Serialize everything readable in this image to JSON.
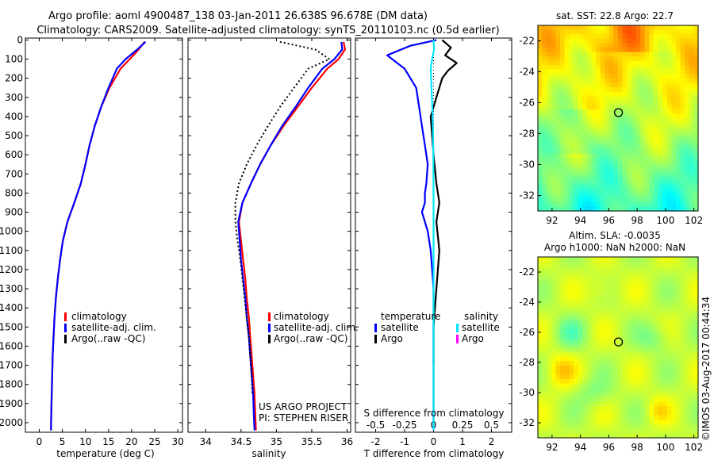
{
  "header": {
    "line1": "Argo profile: aoml 4900487_138 03-Jan-2011 26.638S 96.678E (DM data)",
    "line2": "Climatology: CARS2009. Satellite-adjusted climatology: synTS_20110103.nc (0.5d earlier)"
  },
  "stamp": "©IMOS 03-Aug-2017 00:44:34",
  "colors": {
    "climatology": "#ff0000",
    "satellite": "#0000ff",
    "argo": "#000000",
    "sal_satellite": "#00e5ff",
    "sal_argo": "#ff00ff"
  },
  "chart_data": [
    {
      "id": "temperature",
      "type": "line",
      "xlabel": "temperature (deg C)",
      "xlim": [
        -3,
        31
      ],
      "xticks": [
        0,
        5,
        10,
        15,
        20,
        25,
        30
      ],
      "ylim": [
        2050,
        -10
      ],
      "yticks": [
        0,
        100,
        200,
        300,
        400,
        500,
        600,
        700,
        800,
        900,
        1000,
        1100,
        1200,
        1300,
        1400,
        1500,
        1600,
        1700,
        1800,
        1900,
        2000
      ],
      "legend": [
        "climatology",
        "satellite-adj. clim.",
        "Argo(..raw -QC)"
      ],
      "series": [
        {
          "name": "climatology",
          "style": "solid",
          "x": [
            22.8,
            21.5,
            19.6,
            17.6,
            15.2,
            13.4,
            12.0,
            10.9,
            10.0,
            9.0,
            7.6,
            6.1,
            5.1,
            4.5,
            4.0,
            3.6,
            3.3,
            3.1,
            2.9,
            2.8,
            2.7,
            2.6,
            2.55
          ],
          "y": [
            10,
            50,
            100,
            150,
            250,
            350,
            450,
            550,
            650,
            750,
            850,
            950,
            1050,
            1150,
            1250,
            1350,
            1450,
            1550,
            1650,
            1750,
            1850,
            1950,
            2040
          ]
        },
        {
          "name": "satellite-adj. clim.",
          "style": "solid",
          "x": [
            23.0,
            21.2,
            18.7,
            16.8,
            15.0,
            13.4,
            12.0,
            10.9,
            10.0,
            9.0,
            7.6,
            6.1,
            5.1,
            4.5,
            4.0,
            3.6,
            3.3,
            3.1,
            2.9,
            2.8,
            2.7,
            2.6,
            2.55
          ],
          "y": [
            10,
            50,
            100,
            150,
            250,
            350,
            450,
            550,
            650,
            750,
            850,
            950,
            1050,
            1150,
            1250,
            1350,
            1450,
            1550,
            1650,
            1750,
            1850,
            1950,
            2040
          ]
        }
      ]
    },
    {
      "id": "salinity",
      "type": "line",
      "xlabel": "salinity",
      "xlim": [
        33.75,
        36.05
      ],
      "xticks": [
        34,
        34.5,
        35,
        35.5,
        36
      ],
      "ylim": [
        2050,
        -10
      ],
      "legend": [
        "climatology",
        "satellite-adj. clim.",
        "Argo(..raw -QC)"
      ],
      "annotation": [
        "US ARGO PROJECT",
        "PI: STEPHEN RISER"
      ],
      "series": [
        {
          "name": "climatology",
          "style": "solid",
          "x": [
            35.95,
            35.97,
            35.88,
            35.72,
            35.5,
            35.3,
            35.1,
            34.92,
            34.77,
            34.64,
            34.52,
            34.47,
            34.5,
            34.53,
            34.56,
            34.58,
            34.61,
            34.63,
            34.65,
            34.67,
            34.69,
            34.7,
            34.71
          ],
          "y": [
            10,
            50,
            100,
            150,
            250,
            350,
            450,
            550,
            650,
            750,
            850,
            950,
            1050,
            1150,
            1250,
            1350,
            1450,
            1550,
            1650,
            1750,
            1850,
            1950,
            2040
          ]
        },
        {
          "name": "satellite-adj. clim.",
          "style": "solid",
          "x": [
            35.92,
            35.93,
            35.82,
            35.65,
            35.45,
            35.27,
            35.08,
            34.92,
            34.77,
            34.64,
            34.52,
            34.46,
            34.48,
            34.5,
            34.53,
            34.56,
            34.58,
            34.61,
            34.63,
            34.65,
            34.67,
            34.68,
            34.69
          ],
          "y": [
            10,
            50,
            100,
            150,
            250,
            350,
            450,
            550,
            650,
            750,
            850,
            950,
            1050,
            1150,
            1250,
            1350,
            1450,
            1550,
            1650,
            1750,
            1850,
            1950,
            2040
          ]
        },
        {
          "name": "Argo(..raw -QC)",
          "style": "dotted",
          "x": [
            35.05,
            35.55,
            35.75,
            35.45,
            35.25,
            35.05,
            34.88,
            34.72,
            34.58,
            34.47,
            34.42,
            34.42,
            34.45,
            34.49,
            34.52,
            34.55,
            34.58,
            34.61,
            34.63,
            34.65,
            34.66
          ],
          "y": [
            10,
            50,
            100,
            150,
            250,
            350,
            450,
            550,
            650,
            750,
            850,
            950,
            1050,
            1150,
            1250,
            1350,
            1450,
            1550,
            1650,
            1750,
            1850
          ]
        }
      ]
    },
    {
      "id": "difference",
      "type": "line",
      "xlabel": "T difference from climatology",
      "xlabel_top": "S difference from climatology",
      "xlim": [
        -2.7,
        2.7
      ],
      "xticks": [
        -2,
        -1,
        0,
        1,
        2
      ],
      "xticks_s": [
        "-0.5",
        "-0.25",
        "0",
        "0.25",
        "0.5"
      ],
      "ylim": [
        2050,
        -10
      ],
      "legend_title_left": "temperature",
      "legend_title_right": "salinity",
      "legend": [
        "satellite",
        "Argo",
        "satellite",
        "Argo"
      ],
      "series": [
        {
          "name": "T satellite",
          "style": "solid",
          "x": [
            0.1,
            -0.8,
            -1.6,
            -1.0,
            -0.6,
            -0.5,
            -0.4,
            -0.3,
            -0.2,
            -0.25,
            -0.3,
            -0.3,
            -0.4,
            -0.2,
            -0.1,
            0.0,
            0.0,
            0.0,
            0.0,
            0.0
          ],
          "y": [
            0,
            30,
            80,
            150,
            250,
            350,
            450,
            550,
            650,
            750,
            800,
            850,
            900,
            1000,
            1100,
            1300,
            1500,
            1700,
            1900,
            2040
          ]
        },
        {
          "name": "T Argo",
          "style": "solid",
          "x": [
            0.3,
            0.6,
            0.4,
            0.8,
            0.5,
            0.3,
            0.1,
            -0.1,
            0.0,
            0.1,
            0.2,
            0.1,
            0.2,
            0.1,
            0.0,
            0.0
          ],
          "y": [
            0,
            40,
            80,
            120,
            160,
            200,
            300,
            400,
            600,
            750,
            850,
            950,
            1100,
            1300,
            1500,
            1700
          ]
        },
        {
          "name": "S satellite",
          "style": "solid",
          "x": [
            0.0,
            0.02,
            -0.05,
            -0.1,
            -0.07,
            -0.03,
            -0.01,
            0.0,
            0.0,
            0.0,
            0.0
          ],
          "y": [
            0,
            50,
            100,
            150,
            250,
            400,
            550,
            800,
            1100,
            1500,
            2040
          ]
        }
      ]
    },
    {
      "id": "sst_map",
      "type": "heatmap",
      "title": "sat. SST: 22.8 Argo: 22.7",
      "xlim": [
        91,
        102.3
      ],
      "ylim": [
        -33,
        -21
      ],
      "xticks": [
        92,
        94,
        96,
        98,
        100,
        102
      ],
      "yticks": [
        -22,
        -24,
        -26,
        -28,
        -30,
        -32
      ],
      "marker": [
        96.68,
        -26.64
      ]
    },
    {
      "id": "sla_map",
      "type": "heatmap",
      "title_line1": "Altim. SLA: -0.0035",
      "title_line2": "Argo h1000: NaN h2000: NaN",
      "xlim": [
        91,
        102.3
      ],
      "ylim": [
        -33,
        -21
      ],
      "xticks": [
        92,
        94,
        96,
        98,
        100,
        102
      ],
      "yticks": [
        -22,
        -24,
        -26,
        -28,
        -30,
        -32
      ],
      "marker": [
        96.68,
        -26.64
      ]
    }
  ]
}
